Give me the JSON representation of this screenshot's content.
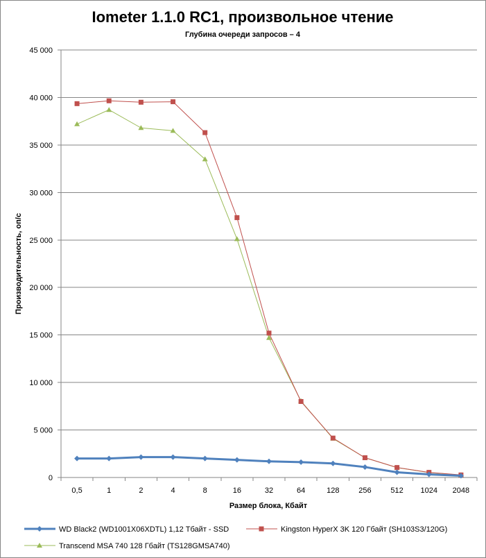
{
  "chart_data": {
    "type": "line",
    "title": "Iometer 1.1.0 RC1, произвольное чтение",
    "subtitle": "Глубина очереди запросов – 4",
    "xlabel": "Размер блока, Кбайт",
    "ylabel": "Производительность,  оп/с",
    "categories": [
      "0,5",
      "1",
      "2",
      "4",
      "8",
      "16",
      "32",
      "64",
      "128",
      "256",
      "512",
      "1024",
      "2048"
    ],
    "ylim": [
      0,
      45000
    ],
    "yticks": [
      0,
      5000,
      10000,
      15000,
      20000,
      25000,
      30000,
      35000,
      40000,
      45000
    ],
    "ytick_labels": [
      "0",
      "5 000",
      "10 000",
      "15 000",
      "20 000",
      "25 000",
      "30 000",
      "35 000",
      "40 000",
      "45 000"
    ],
    "grid": true,
    "legend_position": "bottom",
    "series": [
      {
        "name": "WD Black2 (WD1001X06XDTL) 1,12 Тбайт - SSD",
        "color": "#4f81bd",
        "marker": "diamond",
        "values": [
          2000,
          2000,
          2150,
          2150,
          2000,
          1850,
          1700,
          1620,
          1480,
          1100,
          550,
          330,
          180
        ]
      },
      {
        "name": "Kingston HyperX 3K 120 Гбайт (SH103S3/120G)",
        "color": "#c0504d",
        "marker": "square",
        "values": [
          39350,
          39650,
          39500,
          39550,
          36300,
          27350,
          15200,
          8000,
          4150,
          2080,
          1050,
          540,
          270
        ]
      },
      {
        "name": "Transcend MSA 740 128 Гбайт (TS128GMSA740)",
        "color": "#9bbb59",
        "marker": "triangle",
        "values": [
          37200,
          38700,
          36800,
          36500,
          33500,
          25100,
          14700,
          8050,
          4100,
          2080,
          1040,
          520,
          260
        ]
      }
    ]
  }
}
